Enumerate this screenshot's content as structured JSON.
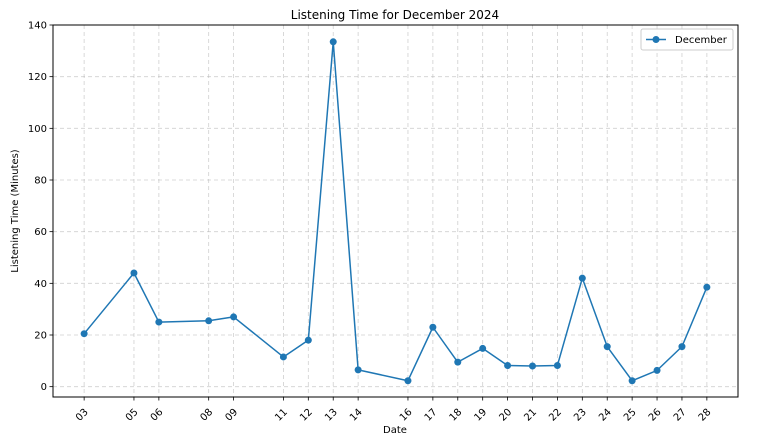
{
  "chart_data": {
    "type": "line",
    "title": "Listening Time for December 2024",
    "xlabel": "Date",
    "ylabel": "Listening Time (Minutes)",
    "ylim": [
      -4,
      140
    ],
    "yticks": [
      0,
      20,
      40,
      60,
      80,
      100,
      120,
      140
    ],
    "x_tick_labels": [
      "03",
      "05",
      "06",
      "08",
      "09",
      "11",
      "12",
      "13",
      "14",
      "16",
      "17",
      "18",
      "19",
      "20",
      "21",
      "22",
      "23",
      "24",
      "25",
      "26",
      "27",
      "28"
    ],
    "x_days": [
      3,
      5,
      6,
      8,
      9,
      11,
      12,
      13,
      14,
      16,
      17,
      18,
      19,
      20,
      21,
      22,
      23,
      24,
      25,
      26,
      27,
      28
    ],
    "grid": true,
    "legend_position": "top-right",
    "series": [
      {
        "name": "December",
        "color": "#1f77b4",
        "values": [
          20.5,
          44,
          25,
          25.5,
          27,
          11.5,
          18,
          133.5,
          6.5,
          2.3,
          23,
          9.5,
          14.8,
          8.2,
          8,
          8.2,
          42,
          15.5,
          2.3,
          6.3,
          15.5,
          38.5
        ]
      }
    ]
  }
}
